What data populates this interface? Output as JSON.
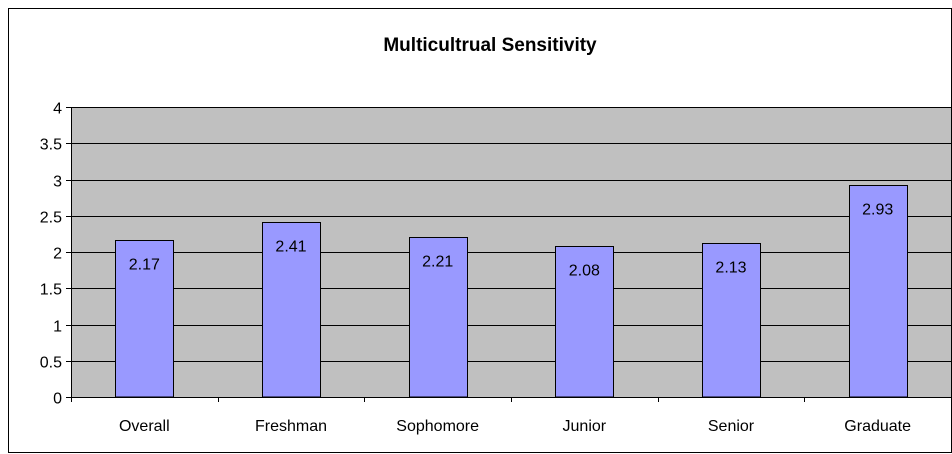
{
  "chart_data": {
    "type": "bar",
    "title": "Multicultrual Sensitivity",
    "categories": [
      "Overall",
      "Freshman",
      "Sophomore",
      "Junior",
      "Senior",
      "Graduate"
    ],
    "values": [
      2.17,
      2.41,
      2.21,
      2.08,
      2.13,
      2.93
    ],
    "data_labels": [
      "2.17",
      "2.41",
      "2.21",
      "2.08",
      "2.13",
      "2.93"
    ],
    "ylim": [
      0,
      4
    ],
    "yticks": [
      "0",
      "0.5",
      "1",
      "1.5",
      "2",
      "2.5",
      "3",
      "3.5",
      "4"
    ],
    "ytick_values": [
      0,
      0.5,
      1,
      1.5,
      2,
      2.5,
      3,
      3.5,
      4
    ],
    "grid": true,
    "legend": "none",
    "xlabel": "",
    "ylabel": "",
    "colors": {
      "bar_fill": "#9999ff",
      "bar_stroke": "#000000",
      "plot_background": "#c0c0c0",
      "gridline": "#000000",
      "chart_background": "#ffffff"
    }
  }
}
